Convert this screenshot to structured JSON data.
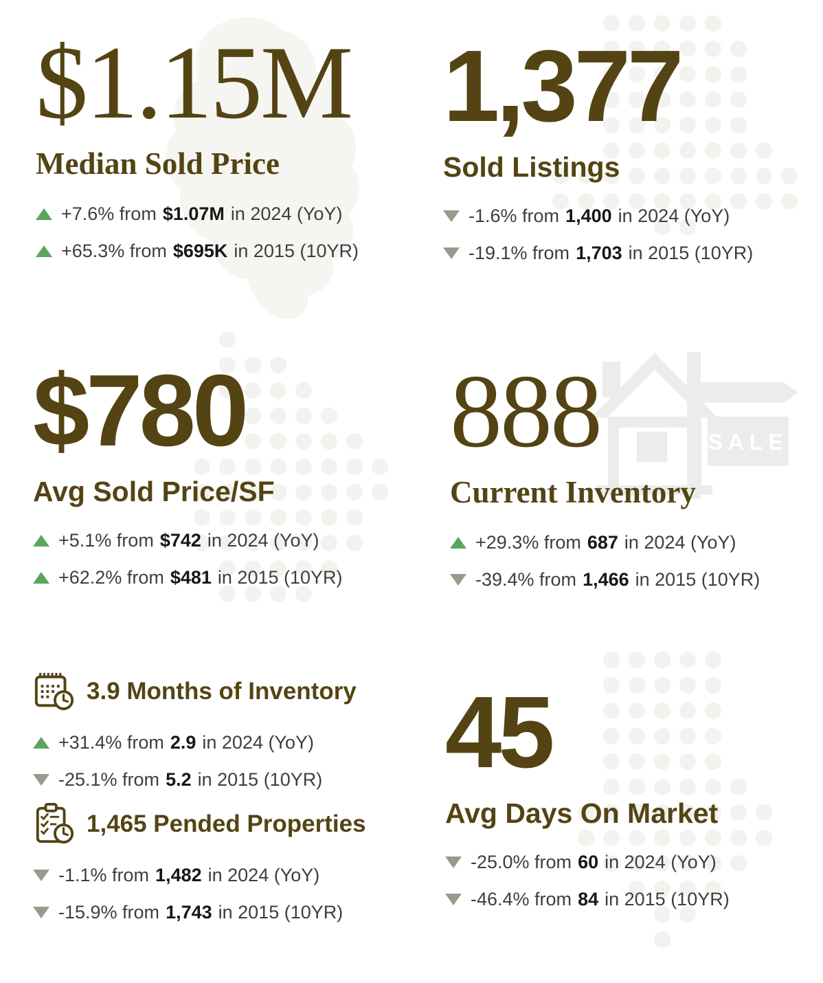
{
  "colors": {
    "accent": "#544414",
    "up_green": "#5ba55c",
    "down_gray": "#9a998e",
    "body_text": "#3e3e3e",
    "decoration_gray": "#f2f2ef"
  },
  "sale_sign": "SALE",
  "metrics": {
    "median_sold_price": {
      "big": "$1.15M",
      "label": "Median Sold Price",
      "changes": [
        {
          "dir": "up",
          "pre": "+7.6% from",
          "value": "$1.07M",
          "post": "in 2024 (YoY)"
        },
        {
          "dir": "up",
          "pre": "+65.3% from",
          "value": "$695K",
          "post": "in 2015 (10YR)"
        }
      ]
    },
    "sold_listings": {
      "big": "1,377",
      "label": "Sold Listings",
      "changes": [
        {
          "dir": "down",
          "pre": "-1.6% from",
          "value": "1,400",
          "post": "in 2024 (YoY)"
        },
        {
          "dir": "down",
          "pre": "-19.1% from",
          "value": "1,703",
          "post": "in 2015 (10YR)"
        }
      ]
    },
    "avg_sold_price_sf": {
      "big": "$780",
      "label": "Avg Sold Price/SF",
      "changes": [
        {
          "dir": "up",
          "pre": "+5.1% from",
          "value": "$742",
          "post": "in 2024 (YoY)"
        },
        {
          "dir": "up",
          "pre": "+62.2% from",
          "value": "$481",
          "post": "in 2015 (10YR)"
        }
      ]
    },
    "current_inventory": {
      "big": "888",
      "label": "Current Inventory",
      "changes": [
        {
          "dir": "up",
          "pre": "+29.3% from",
          "value": "687",
          "post": "in 2024 (YoY)"
        },
        {
          "dir": "down",
          "pre": "-39.4% from",
          "value": "1,466",
          "post": "in 2015 (10YR)"
        }
      ]
    },
    "months_of_inventory": {
      "heading": "3.9 Months of Inventory",
      "changes": [
        {
          "dir": "up",
          "pre": "+31.4% from",
          "value": "2.9",
          "post": "in 2024 (YoY)"
        },
        {
          "dir": "down",
          "pre": "-25.1% from",
          "value": "5.2",
          "post": "in 2015 (10YR)"
        }
      ]
    },
    "pended_properties": {
      "heading": "1,465 Pended Properties",
      "changes": [
        {
          "dir": "down",
          "pre": "-1.1% from",
          "value": "1,482",
          "post": "in 2024 (YoY)"
        },
        {
          "dir": "down",
          "pre": "-15.9% from",
          "value": "1,743",
          "post": "in 2015 (10YR)"
        }
      ]
    },
    "avg_days_on_market": {
      "big": "45",
      "label": "Avg Days On Market",
      "changes": [
        {
          "dir": "down",
          "pre": "-25.0% from",
          "value": "60",
          "post": "in 2024 (YoY)"
        },
        {
          "dir": "down",
          "pre": "-46.4% from",
          "value": "84",
          "post": "in 2015 (10YR)"
        }
      ]
    }
  }
}
